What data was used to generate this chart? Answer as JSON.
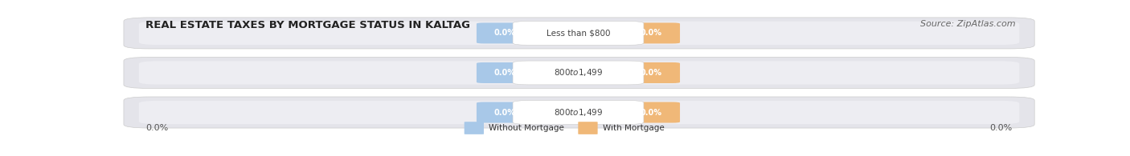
{
  "title": "REAL ESTATE TAXES BY MORTGAGE STATUS IN KALTAG",
  "source": "Source: ZipAtlas.com",
  "categories": [
    "Less than $800",
    "$800 to $1,499",
    "$800 to $1,499"
  ],
  "without_mortgage": [
    0.0,
    0.0,
    0.0
  ],
  "with_mortgage": [
    0.0,
    0.0,
    0.0
  ],
  "bar_color_left": "#a8c8e8",
  "bar_color_right": "#f0b878",
  "row_bg_color": "#e8e8ec",
  "row_bg_color2": "#f0f0f4",
  "white_label_bg": "#ffffff",
  "title_fontsize": 9.5,
  "source_fontsize": 8,
  "legend_label_left": "Without Mortgage",
  "legend_label_right": "With Mortgage",
  "x_left_label": "0.0%",
  "x_right_label": "0.0%",
  "figsize": [
    14.06,
    1.95
  ],
  "dpi": 100,
  "bg_color": "#ffffff",
  "pill_label_color": "#ffffff",
  "cat_label_color": "#444444",
  "axis_label_color": "#555555"
}
